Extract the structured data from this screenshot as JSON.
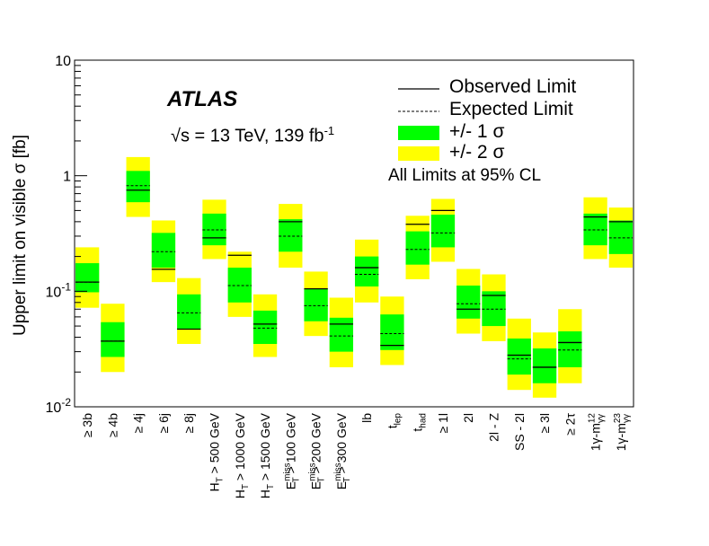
{
  "experiment": "ATLAS",
  "energy": {
    "pre": "√s = 13 TeV, 139 fb",
    "sup": "-1"
  },
  "cl_note": "All Limits at 95% CL",
  "legend": {
    "observed": "Observed Limit",
    "expected": "Expected Limit",
    "one_sigma": "+/- 1 σ",
    "two_sigma": "+/- 2 σ"
  },
  "colors": {
    "one_sigma": "#00ff00",
    "two_sigma": "#ffff00",
    "line": "#000000"
  },
  "chart_data": {
    "type": "bar",
    "title": "",
    "ylabel": "Upper limit on visible σ [fb]",
    "xlabel": "",
    "yscale": "log",
    "ylim": [
      0.01,
      10
    ],
    "yticks": [
      {
        "v": 0.01,
        "base": "10",
        "exp": "-2"
      },
      {
        "v": 0.1,
        "base": "10",
        "exp": "-1"
      },
      {
        "v": 1,
        "base": "1",
        "exp": ""
      },
      {
        "v": 10,
        "base": "10",
        "exp": ""
      }
    ],
    "categories": [
      {
        "main": "≥ 3b"
      },
      {
        "main": "≥ 4b"
      },
      {
        "main": "≥ 4j"
      },
      {
        "main": "≥ 6j"
      },
      {
        "main": "≥ 8j"
      },
      {
        "main": "H",
        "sub": "T",
        "rest": " > 500 GeV"
      },
      {
        "main": "H",
        "sub": "T",
        "rest": " > 1000 GeV"
      },
      {
        "main": "H",
        "sub": "T",
        "rest": " > 1500 GeV"
      },
      {
        "main": "E",
        "sub": "T",
        "sup": "miss",
        "rest": " > 100 GeV"
      },
      {
        "main": "E",
        "sub": "T",
        "sup": "miss",
        "rest": " > 200 GeV"
      },
      {
        "main": "E",
        "sub": "T",
        "sup": "miss",
        "rest": " > 300 GeV"
      },
      {
        "main": "lb"
      },
      {
        "main": "t",
        "sub": "lep"
      },
      {
        "main": "t",
        "sub": "had"
      },
      {
        "main": "≥ 1l"
      },
      {
        "main": "2l"
      },
      {
        "main": "2l - Z"
      },
      {
        "main": "SS - 2l"
      },
      {
        "main": "≥ 3l"
      },
      {
        "main": "≥ 2τ"
      },
      {
        "main": "1γ-m",
        "sub": "γγ",
        "sup": "12"
      },
      {
        "main": "1γ-m",
        "sub": "γγ",
        "sup": "23"
      }
    ],
    "observed": [
      0.12,
      0.037,
      0.75,
      0.155,
      0.047,
      0.29,
      0.205,
      0.052,
      0.4,
      0.105,
      0.052,
      0.16,
      0.034,
      0.38,
      0.5,
      0.07,
      0.092,
      0.028,
      0.022,
      0.036,
      0.44,
      0.4
    ],
    "expected": [
      0.12,
      0.037,
      0.82,
      0.22,
      0.065,
      0.34,
      0.112,
      0.048,
      0.3,
      0.075,
      0.041,
      0.14,
      0.043,
      0.23,
      0.32,
      0.078,
      0.07,
      0.026,
      0.022,
      0.031,
      0.34,
      0.29
    ],
    "one_sigma": [
      [
        0.098,
        0.175
      ],
      [
        0.027,
        0.054
      ],
      [
        0.59,
        1.1
      ],
      [
        0.16,
        0.32
      ],
      [
        0.047,
        0.094
      ],
      [
        0.25,
        0.47
      ],
      [
        0.08,
        0.16
      ],
      [
        0.035,
        0.068
      ],
      [
        0.22,
        0.42
      ],
      [
        0.055,
        0.106
      ],
      [
        0.03,
        0.059
      ],
      [
        0.11,
        0.2
      ],
      [
        0.031,
        0.063
      ],
      [
        0.17,
        0.33
      ],
      [
        0.24,
        0.46
      ],
      [
        0.058,
        0.112
      ],
      [
        0.05,
        0.1
      ],
      [
        0.019,
        0.039
      ],
      [
        0.016,
        0.032
      ],
      [
        0.022,
        0.045
      ],
      [
        0.25,
        0.47
      ],
      [
        0.21,
        0.41
      ]
    ],
    "two_sigma": [
      [
        0.072,
        0.24
      ],
      [
        0.02,
        0.078
      ],
      [
        0.44,
        1.45
      ],
      [
        0.12,
        0.41
      ],
      [
        0.035,
        0.13
      ],
      [
        0.19,
        0.62
      ],
      [
        0.06,
        0.22
      ],
      [
        0.027,
        0.094
      ],
      [
        0.16,
        0.57
      ],
      [
        0.041,
        0.148
      ],
      [
        0.022,
        0.088
      ],
      [
        0.08,
        0.28
      ],
      [
        0.023,
        0.09
      ],
      [
        0.127,
        0.45
      ],
      [
        0.18,
        0.63
      ],
      [
        0.043,
        0.156
      ],
      [
        0.037,
        0.14
      ],
      [
        0.014,
        0.058
      ],
      [
        0.012,
        0.044
      ],
      [
        0.016,
        0.07
      ],
      [
        0.19,
        0.65
      ],
      [
        0.16,
        0.53
      ]
    ]
  }
}
